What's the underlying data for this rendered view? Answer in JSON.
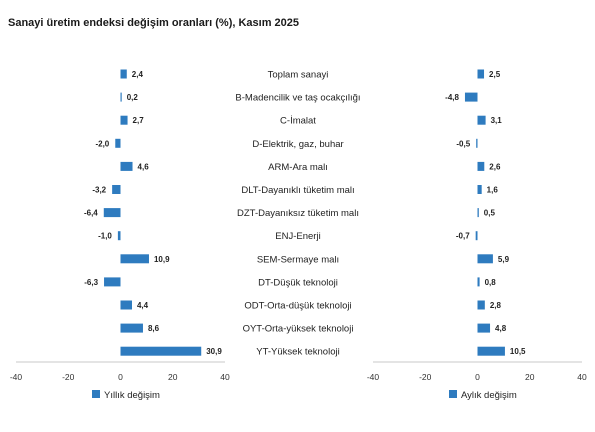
{
  "chart_data": {
    "type": "bar",
    "orientation": "horizontal",
    "title": "Sanayi üretim endeksi değişim oranları (%), Kasım 2025",
    "categories": [
      "Toplam sanayi",
      "B-Madencilik ve taş ocakçılığı",
      "C-İmalat",
      "D-Elektrik, gaz, buhar",
      "ARM-Ara malı",
      "DLT-Dayanıklı tüketim malı",
      "DZT-Dayanıksız tüketim malı",
      "ENJ-Enerji",
      "SEM-Sermaye malı",
      "DT-Düşük teknoloji",
      "ODT-Orta-düşük teknoloji",
      "OYT-Orta-yüksek teknoloji",
      "YT-Yüksek teknoloji"
    ],
    "series": [
      {
        "name": "Yıllık değişim",
        "values": [
          2.4,
          0.2,
          2.7,
          -2.0,
          4.6,
          -3.2,
          -6.4,
          -1.0,
          10.9,
          -6.3,
          4.4,
          8.6,
          30.9
        ],
        "labels": [
          "2,4",
          "0,2",
          "2,7",
          "-2,0",
          "4,6",
          "-3,2",
          "-6,4",
          "-1,0",
          "10,9",
          "-6,3",
          "4,4",
          "8,6",
          "30,9"
        ]
      },
      {
        "name": "Aylık değişim",
        "values": [
          2.5,
          -4.8,
          3.1,
          -0.5,
          2.6,
          1.6,
          0.5,
          -0.7,
          5.9,
          0.8,
          2.8,
          4.8,
          10.5
        ],
        "labels": [
          "2,5",
          "-4,8",
          "3,1",
          "-0,5",
          "2,6",
          "1,6",
          "0,5",
          "-0,7",
          "5,9",
          "0,8",
          "2,8",
          "4,8",
          "10,5"
        ]
      }
    ],
    "xlim": [
      -40,
      40
    ],
    "xticks": [
      -40,
      -20,
      0,
      20,
      40
    ],
    "legend_position": "bottom",
    "grid": false,
    "bar_color": "#2e7bbf"
  }
}
